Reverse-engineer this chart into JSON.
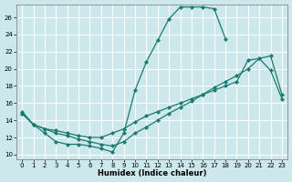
{
  "xlabel": "Humidex (Indice chaleur)",
  "bg_color": "#cce8ec",
  "grid_color": "#ffffff",
  "line_color": "#1a7a6e",
  "xlim": [
    -0.5,
    23.5
  ],
  "ylim": [
    9.5,
    27.5
  ],
  "xticks": [
    0,
    1,
    2,
    3,
    4,
    5,
    6,
    7,
    8,
    9,
    10,
    11,
    12,
    13,
    14,
    15,
    16,
    17,
    18,
    19,
    20,
    21,
    22,
    23
  ],
  "yticks": [
    10,
    12,
    14,
    16,
    18,
    20,
    22,
    24,
    26
  ],
  "line1_x": [
    0,
    1,
    2,
    3,
    4,
    5,
    6,
    7,
    8,
    9,
    10,
    11,
    12,
    13,
    14,
    15,
    16,
    17,
    18
  ],
  "line1_y": [
    15.0,
    13.5,
    12.5,
    11.5,
    11.2,
    11.2,
    11.0,
    10.7,
    10.3,
    12.5,
    17.5,
    20.8,
    23.3,
    25.8,
    27.2,
    27.2,
    27.2,
    27.0,
    23.5
  ],
  "line2_x": [
    0,
    1,
    2,
    3,
    4,
    5,
    6,
    7,
    8,
    9,
    10,
    11,
    12,
    13,
    14,
    15,
    16,
    17,
    18,
    19,
    20,
    21,
    22,
    23
  ],
  "line2_y": [
    14.8,
    13.5,
    13.0,
    12.8,
    12.5,
    12.2,
    12.0,
    12.0,
    12.5,
    13.0,
    13.8,
    14.5,
    15.0,
    15.5,
    16.0,
    16.5,
    17.0,
    17.5,
    18.0,
    18.5,
    21.0,
    21.2,
    19.8,
    16.5
  ],
  "line3_x": [
    0,
    1,
    2,
    3,
    4,
    5,
    6,
    7,
    8,
    9,
    10,
    11,
    12,
    13,
    14,
    15,
    16,
    17,
    18,
    19,
    20,
    21,
    22,
    23
  ],
  "line3_y": [
    14.8,
    13.5,
    13.0,
    12.5,
    12.2,
    11.8,
    11.5,
    11.2,
    11.0,
    11.5,
    12.5,
    13.2,
    14.0,
    14.8,
    15.5,
    16.2,
    17.0,
    17.8,
    18.5,
    19.2,
    20.0,
    21.2,
    21.5,
    17.0
  ]
}
